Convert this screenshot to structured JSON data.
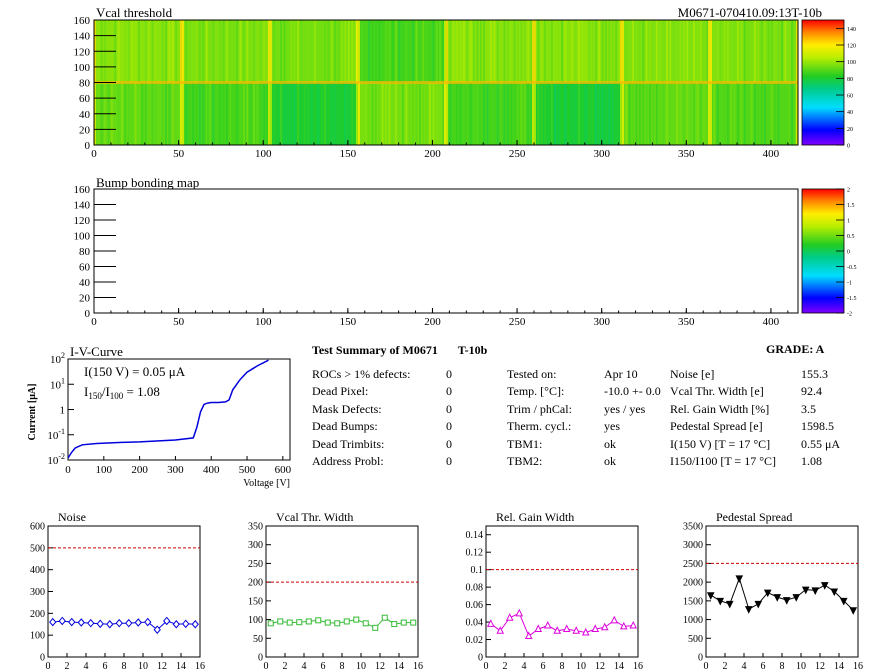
{
  "header": {
    "vcal_title": "Vcal threshold",
    "module_id": "M0671-070410.09:13T-10b",
    "bump_title": "Bump bonding map"
  },
  "colors": {
    "noise": "#0000dd",
    "vcal": "#33bb33",
    "gain": "#dd00dd",
    "pedestal": "#000000",
    "cut_line": "#cc0000",
    "iv_curve": "#0000dd"
  },
  "map_axes": {
    "x_ticks": [
      "0",
      "50",
      "100",
      "150",
      "200",
      "250",
      "300",
      "350",
      "400"
    ],
    "y_ticks": [
      "0",
      "20",
      "40",
      "60",
      "80",
      "100",
      "120",
      "140",
      "160"
    ]
  },
  "vcal_palette": {
    "ticks": [
      "0",
      "20",
      "40",
      "60",
      "80",
      "100",
      "120",
      "140"
    ]
  },
  "bump_palette": {
    "ticks": [
      "-2",
      "-1.5",
      "-1",
      "-0.5",
      "0",
      "0.5",
      "1",
      "1.5",
      "2"
    ]
  },
  "iv": {
    "title": "I-V-Curve",
    "ylabel": "Current [μA]",
    "xlabel": "Voltage [V]",
    "x_ticks": [
      "0",
      "100",
      "200",
      "300",
      "400",
      "500",
      "600"
    ],
    "y_ticks": [
      "10",
      "10",
      "1",
      "10",
      "10"
    ],
    "y_exps": [
      "2",
      "1",
      "",
      "-1",
      "-2"
    ],
    "ann1": "I(150 V) = 0.05 μA",
    "ann2_a": "I",
    "ann2_sub1": "150",
    "ann2_b": "/I",
    "ann2_sub2": "100",
    "ann2_c": " = 1.08"
  },
  "summary": {
    "title": "Test Summary of M0671",
    "subtitle": "T-10b",
    "grade": "GRADE:  A",
    "left": [
      {
        "label": "ROCs > 1% defects:",
        "value": "0"
      },
      {
        "label": "Dead Pixel:",
        "value": "0"
      },
      {
        "label": "Mask Defects:",
        "value": "0"
      },
      {
        "label": "Dead Bumps:",
        "value": "0"
      },
      {
        "label": "Dead Trimbits:",
        "value": "0"
      },
      {
        "label": "Address Probl:",
        "value": "0"
      }
    ],
    "middle": [
      {
        "label": "Tested on:",
        "value": "Apr 10"
      },
      {
        "label": "Temp. [°C]:",
        "value": "-10.0 +- 0.0"
      },
      {
        "label": "Trim / phCal:",
        "value": "yes / yes"
      },
      {
        "label": "Therm. cycl.:",
        "value": "yes"
      },
      {
        "label": "TBM1:",
        "value": "ok"
      },
      {
        "label": "TBM2:",
        "value": "ok"
      }
    ],
    "right": [
      {
        "label": "Noise [e]",
        "value": "155.3"
      },
      {
        "label": "Vcal Thr. Width [e]",
        "value": "92.4"
      },
      {
        "label": "Rel. Gain Width [%]",
        "value": "3.5"
      },
      {
        "label": "Pedestal Spread [e]",
        "value": "1598.5"
      },
      {
        "label": "I(150 V) [T = 17 °C]",
        "value": "0.55 μA"
      },
      {
        "label": "I150/I100  [T = 17 °C]",
        "value": "1.08"
      }
    ]
  },
  "chart_data": [
    {
      "type": "heatmap",
      "title": "Vcal threshold",
      "xlim": [
        0,
        416
      ],
      "ylim": [
        0,
        160
      ],
      "z_range": [
        0,
        150
      ],
      "description_of_values": "16 ROC blocks (8 per row), block means",
      "block_means_bottom": [
        92,
        88,
        80,
        95,
        88,
        80,
        92,
        90
      ],
      "block_means_top": [
        98,
        96,
        95,
        88,
        98,
        98,
        96,
        96
      ]
    },
    {
      "type": "heatmap",
      "title": "Bump bonding map",
      "xlim": [
        0,
        416
      ],
      "ylim": [
        0,
        160
      ],
      "z_range": [
        -2,
        2
      ]
    },
    {
      "type": "line",
      "title": "I-V-Curve",
      "xlabel": "Voltage [V]",
      "ylabel": "Current [μA]",
      "yscale": "log",
      "xlim": [
        0,
        620
      ],
      "ylim": [
        0.01,
        100
      ],
      "x": [
        0,
        10,
        20,
        40,
        80,
        150,
        200,
        300,
        350,
        360,
        370,
        380,
        390,
        400,
        420,
        440,
        450,
        460,
        480,
        500,
        530,
        560
      ],
      "y": [
        0.012,
        0.02,
        0.03,
        0.04,
        0.045,
        0.05,
        0.052,
        0.062,
        0.075,
        0.2,
        0.8,
        1.6,
        1.8,
        1.9,
        1.9,
        2.0,
        2.4,
        6,
        15,
        30,
        55,
        90
      ]
    },
    {
      "type": "scatter",
      "title": "Noise",
      "xlim": [
        0,
        16
      ],
      "ylim": [
        0,
        600
      ],
      "cut": 500,
      "x": [
        0.5,
        1.5,
        2.5,
        3.5,
        4.5,
        5.5,
        6.5,
        7.5,
        8.5,
        9.5,
        10.5,
        11.5,
        12.5,
        13.5,
        14.5,
        15.5
      ],
      "y": [
        160,
        165,
        160,
        158,
        155,
        152,
        150,
        155,
        155,
        158,
        160,
        125,
        165,
        150,
        152,
        150
      ]
    },
    {
      "type": "scatter",
      "title": "Vcal Thr. Width",
      "xlim": [
        0,
        16
      ],
      "ylim": [
        0,
        350
      ],
      "cut": 200,
      "x": [
        0.5,
        1.5,
        2.5,
        3.5,
        4.5,
        5.5,
        6.5,
        7.5,
        8.5,
        9.5,
        10.5,
        11.5,
        12.5,
        13.5,
        14.5,
        15.5
      ],
      "y": [
        90,
        95,
        92,
        93,
        95,
        98,
        92,
        90,
        95,
        100,
        90,
        78,
        105,
        88,
        92,
        92
      ]
    },
    {
      "type": "scatter",
      "title": "Rel. Gain Width",
      "xlim": [
        0,
        16
      ],
      "ylim": [
        0,
        0.15
      ],
      "cut": 0.1,
      "x": [
        0.5,
        1.5,
        2.5,
        3.5,
        4.5,
        5.5,
        6.5,
        7.5,
        8.5,
        9.5,
        10.5,
        11.5,
        12.5,
        13.5,
        14.5,
        15.5
      ],
      "y": [
        0.038,
        0.03,
        0.045,
        0.05,
        0.024,
        0.032,
        0.036,
        0.03,
        0.032,
        0.03,
        0.028,
        0.032,
        0.034,
        0.042,
        0.035,
        0.036
      ]
    },
    {
      "type": "scatter",
      "title": "Pedestal Spread",
      "xlim": [
        0,
        16
      ],
      "ylim": [
        0,
        3500
      ],
      "cut": 2500,
      "x": [
        0.5,
        1.5,
        2.5,
        3.5,
        4.5,
        5.5,
        6.5,
        7.5,
        8.5,
        9.5,
        10.5,
        11.5,
        12.5,
        13.5,
        14.5,
        15.5
      ],
      "y": [
        1650,
        1500,
        1420,
        2100,
        1280,
        1420,
        1720,
        1600,
        1520,
        1600,
        1800,
        1780,
        1920,
        1750,
        1500,
        1250
      ]
    }
  ],
  "small_axes": {
    "x_ticks": [
      "0",
      "2",
      "4",
      "6",
      "8",
      "10",
      "12",
      "14",
      "16"
    ],
    "noise_y": [
      "0",
      "100",
      "200",
      "300",
      "400",
      "500",
      "600"
    ],
    "vcal_y": [
      "0",
      "50",
      "100",
      "150",
      "200",
      "250",
      "300",
      "350"
    ],
    "gain_y": [
      "0",
      "0.02",
      "0.04",
      "0.06",
      "0.08",
      "0.1",
      "0.12",
      "0.14"
    ],
    "ped_y": [
      "0",
      "500",
      "1000",
      "1500",
      "2000",
      "2500",
      "3000",
      "3500"
    ]
  }
}
